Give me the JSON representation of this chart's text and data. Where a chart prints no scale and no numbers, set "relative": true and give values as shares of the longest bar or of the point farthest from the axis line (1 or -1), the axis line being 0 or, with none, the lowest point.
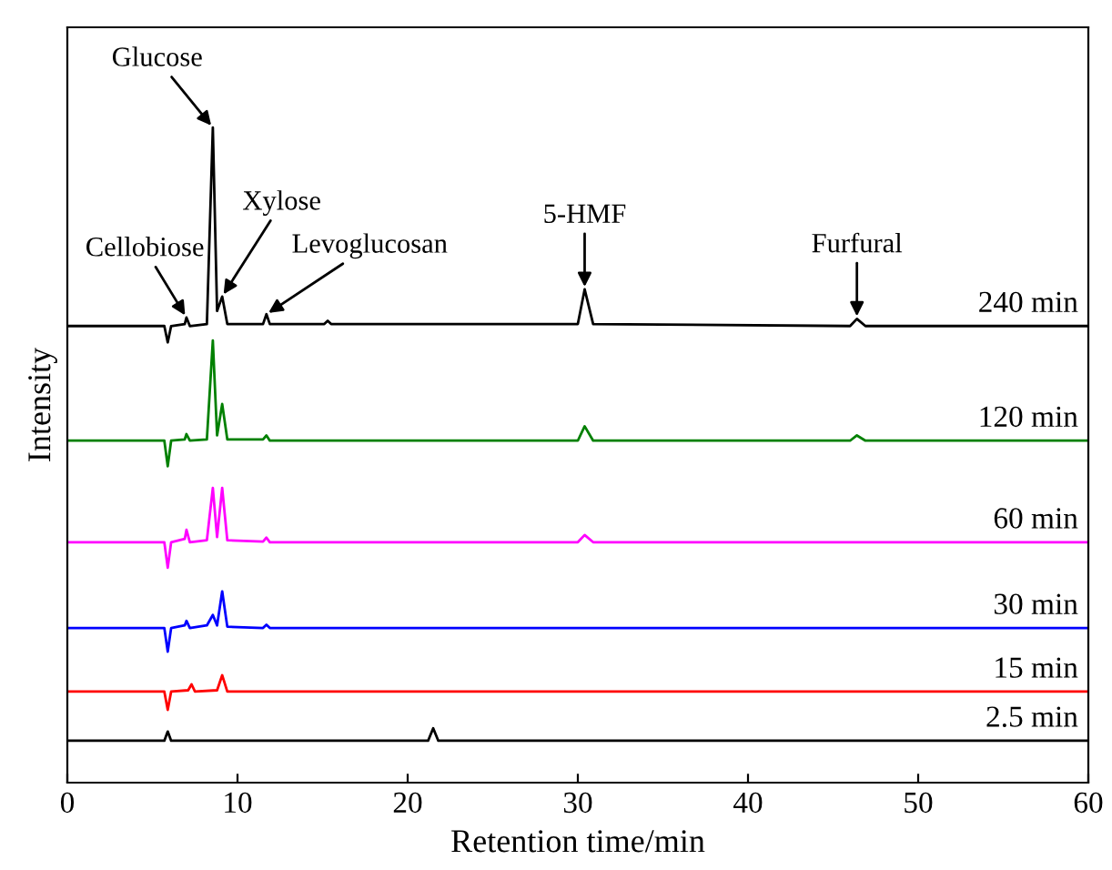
{
  "chart_data": {
    "type": "line",
    "relative": true,
    "xlabel": "Retention time/min",
    "ylabel": "Intensity",
    "xlim": [
      0,
      60
    ],
    "xticks": [
      0,
      10,
      20,
      30,
      40,
      50,
      60
    ],
    "tick_labels": "x",
    "grid": false,
    "legend": false,
    "marker": "none",
    "line_style": "solid",
    "series": [
      {
        "name": "240 min",
        "color": "#000000",
        "x": [
          0,
          5.7,
          5.9,
          6.1,
          6.9,
          7.0,
          7.2,
          8.2,
          8.55,
          8.8,
          9.1,
          9.4,
          11.5,
          11.7,
          11.9,
          15.1,
          15.3,
          15.5,
          30.0,
          30.4,
          30.9,
          46.0,
          46.4,
          46.9,
          60
        ],
        "values": [
          0.697,
          0.697,
          0.672,
          0.697,
          0.7,
          0.71,
          0.697,
          0.7,
          1.0,
          0.72,
          0.742,
          0.7,
          0.7,
          0.715,
          0.7,
          0.7,
          0.705,
          0.7,
          0.7,
          0.753,
          0.7,
          0.697,
          0.708,
          0.697,
          0.697
        ]
      },
      {
        "name": "120 min",
        "color": "#008000",
        "x": [
          0,
          5.7,
          5.9,
          6.1,
          6.9,
          7.0,
          7.2,
          8.2,
          8.55,
          8.8,
          9.1,
          9.4,
          11.5,
          11.7,
          11.9,
          30.0,
          30.4,
          30.9,
          46.0,
          46.4,
          46.9,
          60
        ],
        "values": [
          0.522,
          0.522,
          0.483,
          0.522,
          0.524,
          0.532,
          0.522,
          0.524,
          0.675,
          0.53,
          0.578,
          0.524,
          0.524,
          0.53,
          0.522,
          0.522,
          0.544,
          0.522,
          0.522,
          0.53,
          0.522,
          0.522
        ]
      },
      {
        "name": "60 min",
        "color": "#ff00ff",
        "x": [
          0,
          5.7,
          5.9,
          6.1,
          6.9,
          7.0,
          7.2,
          8.2,
          8.55,
          8.8,
          9.1,
          9.4,
          11.5,
          11.7,
          11.9,
          30.0,
          30.4,
          30.9,
          60
        ],
        "values": [
          0.367,
          0.367,
          0.328,
          0.367,
          0.372,
          0.386,
          0.367,
          0.37,
          0.45,
          0.375,
          0.45,
          0.37,
          0.368,
          0.374,
          0.367,
          0.367,
          0.378,
          0.367,
          0.367
        ]
      },
      {
        "name": "30 min",
        "color": "#0000ff",
        "x": [
          0,
          5.7,
          5.9,
          6.1,
          6.9,
          7.0,
          7.2,
          8.2,
          8.55,
          8.8,
          9.1,
          9.4,
          11.5,
          11.7,
          11.9,
          60
        ],
        "values": [
          0.236,
          0.236,
          0.2,
          0.236,
          0.24,
          0.247,
          0.236,
          0.24,
          0.256,
          0.24,
          0.292,
          0.238,
          0.236,
          0.241,
          0.236,
          0.236
        ]
      },
      {
        "name": "15 min",
        "color": "#ff0000",
        "x": [
          0,
          5.7,
          5.9,
          6.1,
          7.1,
          7.3,
          7.5,
          8.8,
          9.1,
          9.4,
          60
        ],
        "values": [
          0.139,
          0.139,
          0.111,
          0.139,
          0.141,
          0.15,
          0.139,
          0.141,
          0.164,
          0.139,
          0.139
        ]
      },
      {
        "name": "2.5 min",
        "color": "#000000",
        "x": [
          0,
          5.7,
          5.9,
          6.1,
          21.2,
          21.5,
          21.8,
          60
        ],
        "values": [
          0.064,
          0.064,
          0.078,
          0.064,
          0.064,
          0.083,
          0.064,
          0.064
        ]
      }
    ],
    "annotations": [
      {
        "text": "Cellobiose",
        "x": 7.0,
        "y": 0.71
      },
      {
        "text": "Glucose",
        "x": 8.55,
        "y": 1.0
      },
      {
        "text": "Xylose",
        "x": 9.1,
        "y": 0.742
      },
      {
        "text": "Levoglucosan",
        "x": 11.7,
        "y": 0.715
      },
      {
        "text": "5-HMF",
        "x": 30.4,
        "y": 0.753
      },
      {
        "text": "Furfural",
        "x": 46.4,
        "y": 0.708
      }
    ]
  }
}
